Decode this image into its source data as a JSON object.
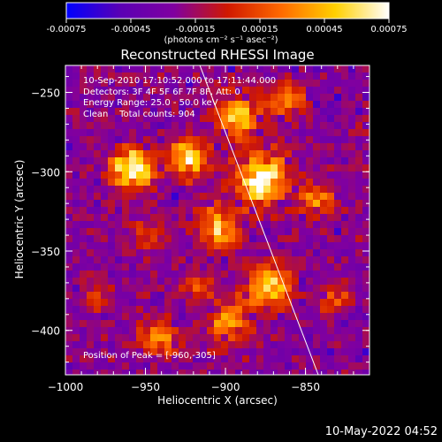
{
  "colorbar": {
    "ticks": [
      "-0.00075",
      "-0.00045",
      "-0.00015",
      "0.00015",
      "0.00045",
      "0.00075"
    ],
    "tick_values": [
      -0.00075,
      -0.00045,
      -0.00015,
      0.00015,
      0.00045,
      0.00075
    ],
    "range": [
      -0.00075,
      0.00075
    ],
    "units_label": "(photons cm⁻² s⁻¹ asec⁻²)",
    "colormap": [
      "#0000ff",
      "#5a00b4",
      "#8000a0",
      "#d01800",
      "#ff6a00",
      "#ffd000",
      "#ffffff"
    ]
  },
  "chart_data": {
    "type": "heatmap",
    "title": "Reconstructed RHESSI Image",
    "xlabel": "Heliocentric X (arcsec)",
    "ylabel": "Heliocentric Y (arcsec)",
    "xlim": [
      -1000,
      -810
    ],
    "ylim": [
      -428,
      -233
    ],
    "xticks": [
      -1000,
      -950,
      -900,
      -850
    ],
    "yticks": [
      -250,
      -300,
      -350,
      -400
    ],
    "xtick_labels": [
      "−1000",
      "−950",
      "−900",
      "−850"
    ],
    "ytick_labels": [
      "−250",
      "−300",
      "−350",
      "−400"
    ],
    "limb_line": {
      "x": [
        -916,
        -842
      ],
      "y": [
        -233,
        -428
      ]
    },
    "peak": {
      "x": -960,
      "y": -305
    },
    "info": [
      "10-Sep-2010 17:10:52.000 to 17:11:44.000",
      "Detectors: 3F 4F 5F 6F 7F 8F, Att: 0",
      "Energy Range: 25.0 - 50.0 keV",
      "Clean    Total counts: 904"
    ],
    "peak_label": "Position of Peak = [-960,-305]",
    "hot_spots": [
      {
        "x": -958,
        "y": -298,
        "sigma": 9,
        "amp": 1.0
      },
      {
        "x": -924,
        "y": -292,
        "sigma": 8,
        "amp": 0.85
      },
      {
        "x": -878,
        "y": -305,
        "sigma": 11,
        "amp": 0.95
      },
      {
        "x": -892,
        "y": -265,
        "sigma": 10,
        "amp": 0.7
      },
      {
        "x": -906,
        "y": -335,
        "sigma": 9,
        "amp": 0.65
      },
      {
        "x": -872,
        "y": -372,
        "sigma": 10,
        "amp": 0.75
      },
      {
        "x": -898,
        "y": -395,
        "sigma": 9,
        "amp": 0.6
      },
      {
        "x": -942,
        "y": -405,
        "sigma": 8,
        "amp": 0.55
      },
      {
        "x": -842,
        "y": -318,
        "sigma": 8,
        "amp": 0.5
      },
      {
        "x": -862,
        "y": -255,
        "sigma": 8,
        "amp": 0.45
      },
      {
        "x": -948,
        "y": -340,
        "sigma": 7,
        "amp": 0.35
      },
      {
        "x": -980,
        "y": -380,
        "sigma": 7,
        "amp": 0.3
      },
      {
        "x": -830,
        "y": -380,
        "sigma": 7,
        "amp": 0.35
      },
      {
        "x": -915,
        "y": -370,
        "sigma": 7,
        "amp": 0.45
      }
    ]
  },
  "timestamp": "10-May-2022 04:52"
}
